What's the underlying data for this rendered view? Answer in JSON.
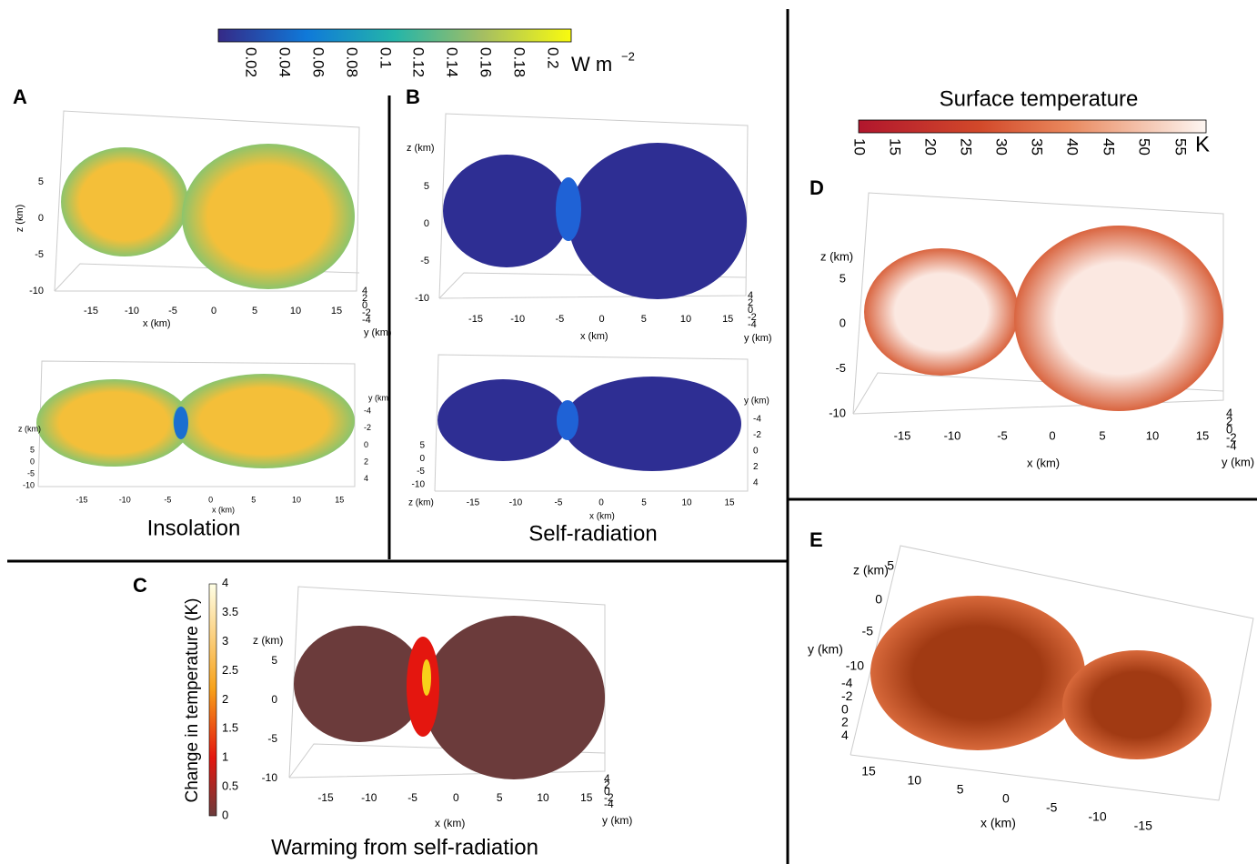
{
  "colorbars": [
    {
      "ticks": [
        0.02,
        0.04,
        0.06,
        0.08,
        0.1,
        0.12,
        0.14,
        0.16,
        0.18,
        0.2
      ],
      "unit": "W m",
      "unit_exponent": "−2"
    },
    {
      "title": "Surface temperature",
      "ticks": [
        10,
        15,
        20,
        25,
        30,
        35,
        40,
        45,
        50,
        55
      ],
      "unit": "K"
    },
    {
      "label": "Change in temperature (K)",
      "ticks": [
        0,
        0.5,
        1,
        1.5,
        2,
        2.5,
        3,
        3.5,
        4
      ]
    }
  ],
  "panels": [
    {
      "letter": "A",
      "caption": "Insolation",
      "views": [
        {
          "z_label": "z (km)",
          "z_ticks": [
            5,
            0,
            -5,
            -10
          ],
          "x_label": "x (km)",
          "x_ticks": [
            -15,
            -10,
            -5,
            0,
            5,
            10,
            15
          ],
          "y_label": "y (km)",
          "y_ticks": [
            4,
            2,
            0,
            -2,
            -4
          ]
        },
        {
          "z_label": "z (km)",
          "z_ticks": [
            5,
            0,
            -5,
            -10
          ],
          "x_label": "x (km)",
          "x_ticks": [
            -15,
            -10,
            -5,
            0,
            5,
            10,
            15
          ],
          "y_label": "y (km)",
          "y_ticks": [
            -4,
            -2,
            0,
            2,
            4
          ]
        }
      ]
    },
    {
      "letter": "B",
      "caption": "Self-radiation",
      "views": [
        {
          "z_label": "z (km)",
          "z_ticks": [
            5,
            0,
            -5,
            -10
          ],
          "x_label": "x (km)",
          "x_ticks": [
            -15,
            -10,
            -5,
            0,
            5,
            10,
            15
          ],
          "y_label": "y (km)",
          "y_ticks": [
            4,
            2,
            0,
            -2,
            -4
          ]
        },
        {
          "z_label": "z (km)",
          "z_ticks": [
            5,
            0,
            -5,
            -10
          ],
          "x_label": "x (km)",
          "x_ticks": [
            -15,
            -10,
            -5,
            0,
            5,
            10,
            15
          ],
          "y_label": "y (km)",
          "y_ticks": [
            -4,
            -2,
            0,
            2,
            4
          ]
        }
      ]
    },
    {
      "letter": "C",
      "caption": "Warming from self-radiation",
      "views": [
        {
          "z_label": "z (km)",
          "z_ticks": [
            5,
            0,
            -5,
            -10
          ],
          "x_label": "x (km)",
          "x_ticks": [
            -15,
            -10,
            -5,
            0,
            5,
            10,
            15
          ],
          "y_label": "y (km)",
          "y_ticks": [
            4,
            2,
            0,
            -2,
            -4
          ]
        }
      ]
    },
    {
      "letter": "D",
      "views": [
        {
          "z_label": "z (km)",
          "z_ticks": [
            5,
            0,
            -5,
            -10
          ],
          "x_label": "x (km)",
          "x_ticks": [
            -15,
            -10,
            -5,
            0,
            5,
            10,
            15
          ],
          "y_label": "y (km)",
          "y_ticks": [
            4,
            2,
            0,
            -2,
            -4
          ]
        }
      ]
    },
    {
      "letter": "E",
      "views": [
        {
          "z_label": "z (km)",
          "z_ticks": [
            5,
            0,
            -5,
            -10
          ],
          "x_label": "x (km)",
          "x_ticks": [
            15,
            10,
            5,
            0,
            -5,
            -10,
            -15
          ],
          "y_label": "y (km)",
          "y_ticks": [
            -4,
            -2,
            0,
            2,
            4
          ]
        }
      ]
    }
  ]
}
